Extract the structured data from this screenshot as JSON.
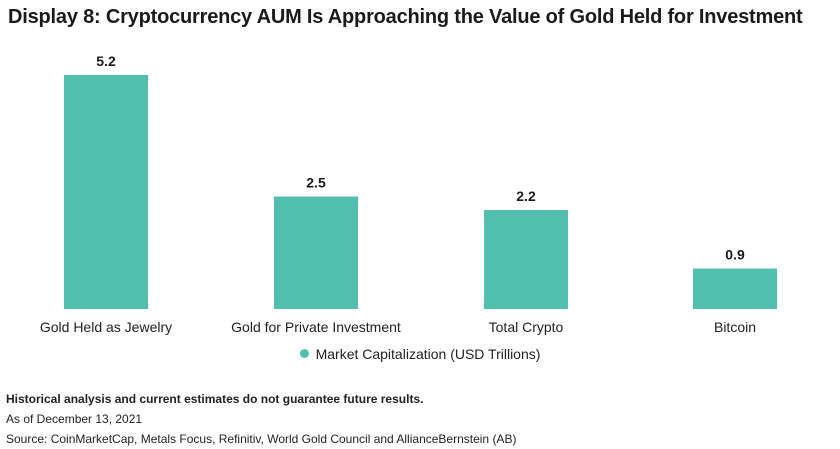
{
  "header": {
    "title": "Display 8: Cryptocurrency AUM Is Approaching the Value of Gold Held for Investment"
  },
  "chart_data": {
    "type": "bar",
    "categories": [
      "Gold Held as Jewelry",
      "Gold for Private Investment",
      "Total Crypto",
      "Bitcoin"
    ],
    "series": [
      {
        "name": "Market Capitalization (USD Trillions)",
        "values": [
          5.2,
          2.5,
          2.2,
          0.9
        ]
      }
    ],
    "data_labels": [
      "5.2",
      "2.5",
      "2.2",
      "0.9"
    ],
    "ylim": [
      0,
      5.2
    ],
    "grid": false,
    "legend_position": "bottom",
    "color": "#52bfae"
  },
  "notes": {
    "disclaimer": "Historical analysis and current estimates do not guarantee future results.",
    "date": "As of December 13, 2021",
    "source": "Source: CoinMarketCap, Metals Focus, Refinitiv, World Gold Council and AllianceBernstein (AB)"
  }
}
